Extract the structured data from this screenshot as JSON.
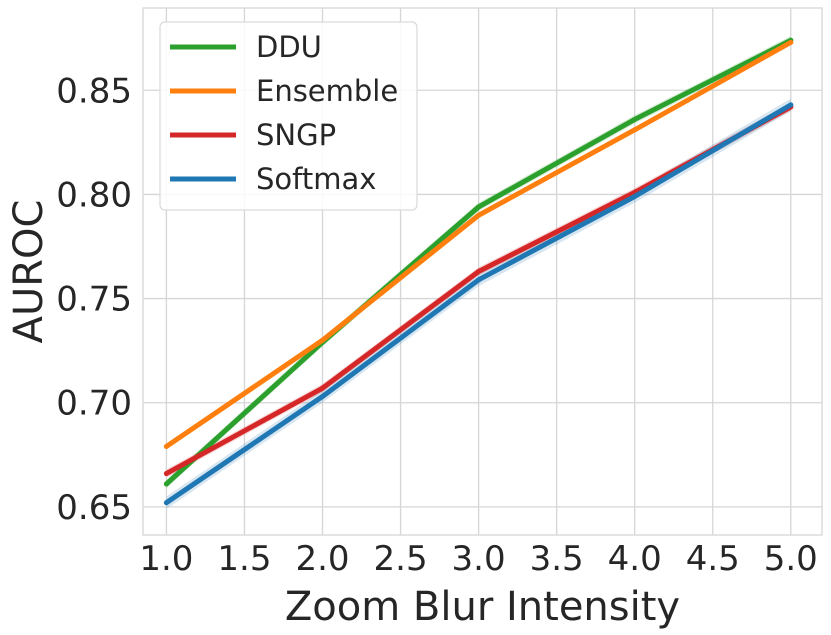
{
  "chart_data": {
    "type": "line",
    "title": "",
    "xlabel": "Zoom Blur Intensity",
    "ylabel": "AUROC",
    "xlim": [
      0.85,
      5.2
    ],
    "ylim": [
      0.6365,
      0.8895
    ],
    "xticks": [
      1.0,
      1.5,
      2.0,
      2.5,
      3.0,
      3.5,
      4.0,
      4.5,
      5.0
    ],
    "xtick_labels": [
      "1.0",
      "1.5",
      "2.0",
      "2.5",
      "3.0",
      "3.5",
      "4.0",
      "4.5",
      "5.0"
    ],
    "yticks": [
      0.65,
      0.7,
      0.75,
      0.8,
      0.85
    ],
    "ytick_labels": [
      "0.65",
      "0.70",
      "0.75",
      "0.80",
      "0.85"
    ],
    "grid": true,
    "legend_position": "top-left",
    "x": [
      1,
      2,
      3,
      4,
      5
    ],
    "series": [
      {
        "name": "DDU",
        "color": "#2ca02c",
        "values": [
          0.661,
          0.729,
          0.794,
          0.836,
          0.874
        ],
        "band": 0.002
      },
      {
        "name": "Ensemble",
        "color": "#ff7f0e",
        "values": [
          0.679,
          0.73,
          0.79,
          0.831,
          0.873
        ],
        "band": 0.001
      },
      {
        "name": "SNGP",
        "color": "#d62728",
        "values": [
          0.666,
          0.707,
          0.763,
          0.801,
          0.842
        ],
        "band": 0.002
      },
      {
        "name": "Softmax",
        "color": "#1f77b4",
        "values": [
          0.652,
          0.703,
          0.759,
          0.799,
          0.843
        ],
        "band": 0.003
      }
    ]
  }
}
